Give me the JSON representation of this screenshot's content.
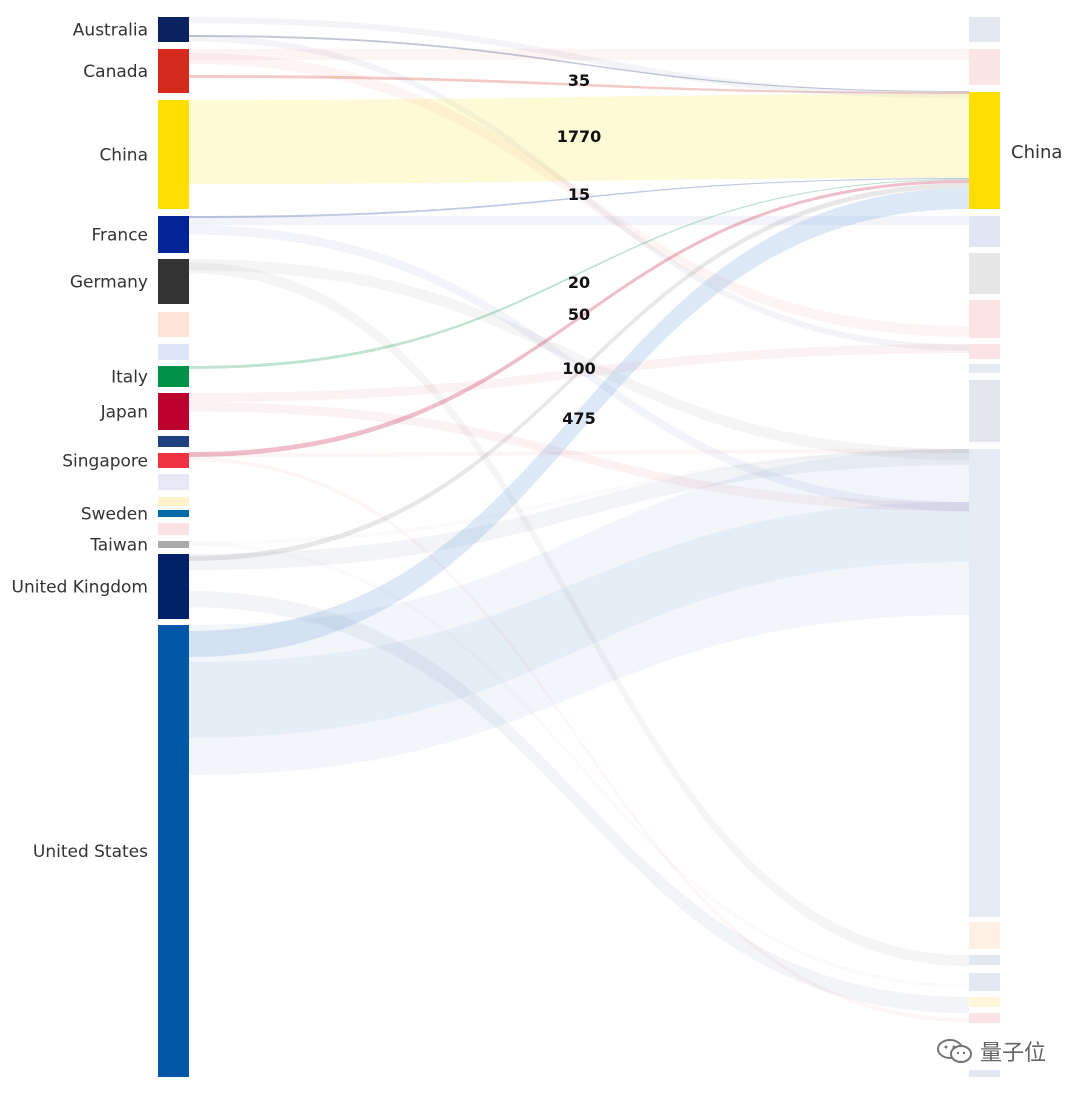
{
  "chart_data": {
    "type": "sankey",
    "target": "China",
    "sources": [
      {
        "name": "Australia",
        "color": "#0b2260",
        "value": 0
      },
      {
        "name": "Canada",
        "color": "#d52b1e",
        "value": 35
      },
      {
        "name": "China",
        "color": "#ffde00",
        "value": 1770
      },
      {
        "name": "France",
        "color": "#002395",
        "value": 15
      },
      {
        "name": "Germany",
        "color": "#333333",
        "value": 0
      },
      {
        "name": "",
        "color": "#fde3d6",
        "value": 0
      },
      {
        "name": "",
        "color": "#dde5f6",
        "value": 0
      },
      {
        "name": "Italy",
        "color": "#009246",
        "value": 20
      },
      {
        "name": "Japan",
        "color": "#bc002d",
        "value": 50
      },
      {
        "name": "",
        "color": "#1f3f7f",
        "value": 0
      },
      {
        "name": "Singapore",
        "color": "#ef3340",
        "value": 0
      },
      {
        "name": "",
        "color": "#e6e9f5",
        "value": 0
      },
      {
        "name": "",
        "color": "#fff3cc",
        "value": 0
      },
      {
        "name": "Sweden",
        "color": "#006aa7",
        "value": 0
      },
      {
        "name": "",
        "color": "#fbe3e6",
        "value": 0
      },
      {
        "name": "Taiwan",
        "color": "#aaaaaa",
        "value": 100
      },
      {
        "name": "United Kingdom",
        "color": "#012169",
        "value": 0
      },
      {
        "name": "United States",
        "color": "#0057a8",
        "value": 475
      }
    ],
    "flow_labels": [
      "35",
      "1770",
      "15",
      "20",
      "50",
      "100",
      "475"
    ],
    "right_nodes": [
      {
        "name": "",
        "color": "#e4e8f0"
      },
      {
        "name": "",
        "color": "#fbe6e6"
      },
      {
        "name": "China",
        "color": "#ffde00"
      },
      {
        "name": "",
        "color": "#e2e6f2"
      },
      {
        "name": "",
        "color": "#e7e7e7"
      },
      {
        "name": "",
        "color": "#fbe3e6"
      },
      {
        "name": "",
        "color": "#fbe3e6"
      },
      {
        "name": "",
        "color": "#e6eaf2"
      },
      {
        "name": "",
        "color": "#e3e6ec"
      },
      {
        "name": "",
        "color": "#e6ecf5"
      },
      {
        "name": "",
        "color": "#fff0e6"
      },
      {
        "name": "",
        "color": "#e4e8f2"
      },
      {
        "name": "",
        "color": "#e4e8f2"
      },
      {
        "name": "",
        "color": "#fff6d9"
      },
      {
        "name": "",
        "color": "#fbe3e6"
      },
      {
        "name": "",
        "color": "#e4e8f2"
      }
    ]
  },
  "watermark": {
    "text": "量子位",
    "icon": "wechat-icon"
  }
}
